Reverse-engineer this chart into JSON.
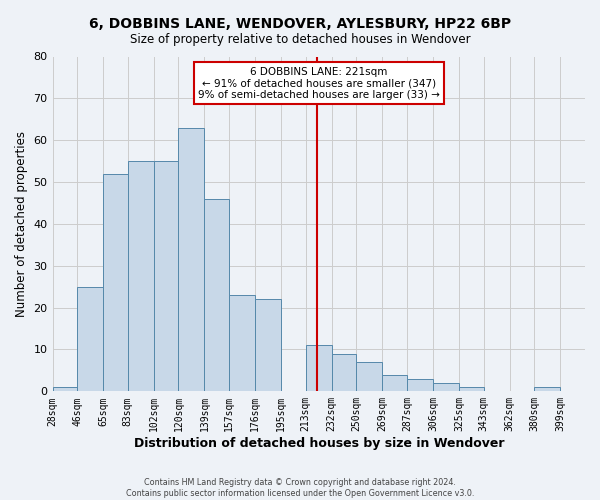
{
  "title": "6, DOBBINS LANE, WENDOVER, AYLESBURY, HP22 6BP",
  "subtitle": "Size of property relative to detached houses in Wendover",
  "xlabel": "Distribution of detached houses by size in Wendover",
  "ylabel": "Number of detached properties",
  "bar_color": "#c8d8e8",
  "bar_edge_color": "#5588aa",
  "bin_labels": [
    "28sqm",
    "46sqm",
    "65sqm",
    "83sqm",
    "102sqm",
    "120sqm",
    "139sqm",
    "157sqm",
    "176sqm",
    "195sqm",
    "213sqm",
    "232sqm",
    "250sqm",
    "269sqm",
    "287sqm",
    "306sqm",
    "325sqm",
    "343sqm",
    "362sqm",
    "380sqm",
    "399sqm"
  ],
  "bin_edges": [
    28,
    46,
    65,
    83,
    102,
    120,
    139,
    157,
    176,
    195,
    213,
    232,
    250,
    269,
    287,
    306,
    325,
    343,
    362,
    380,
    399
  ],
  "counts": [
    1,
    25,
    52,
    55,
    55,
    63,
    46,
    23,
    22,
    0,
    11,
    9,
    7,
    4,
    3,
    2,
    1,
    0,
    0,
    1
  ],
  "property_size": 221,
  "vline_color": "#cc0000",
  "annotation_line1": "6 DOBBINS LANE: 221sqm",
  "annotation_line2": "← 91% of detached houses are smaller (347)",
  "annotation_line3": "9% of semi-detached houses are larger (33) →",
  "annotation_box_edge_color": "#cc0000",
  "ylim": [
    0,
    80
  ],
  "yticks": [
    0,
    10,
    20,
    30,
    40,
    50,
    60,
    70,
    80
  ],
  "grid_color": "#cccccc",
  "background_color": "#eef2f7",
  "footer_line1": "Contains HM Land Registry data © Crown copyright and database right 2024.",
  "footer_line2": "Contains public sector information licensed under the Open Government Licence v3.0."
}
